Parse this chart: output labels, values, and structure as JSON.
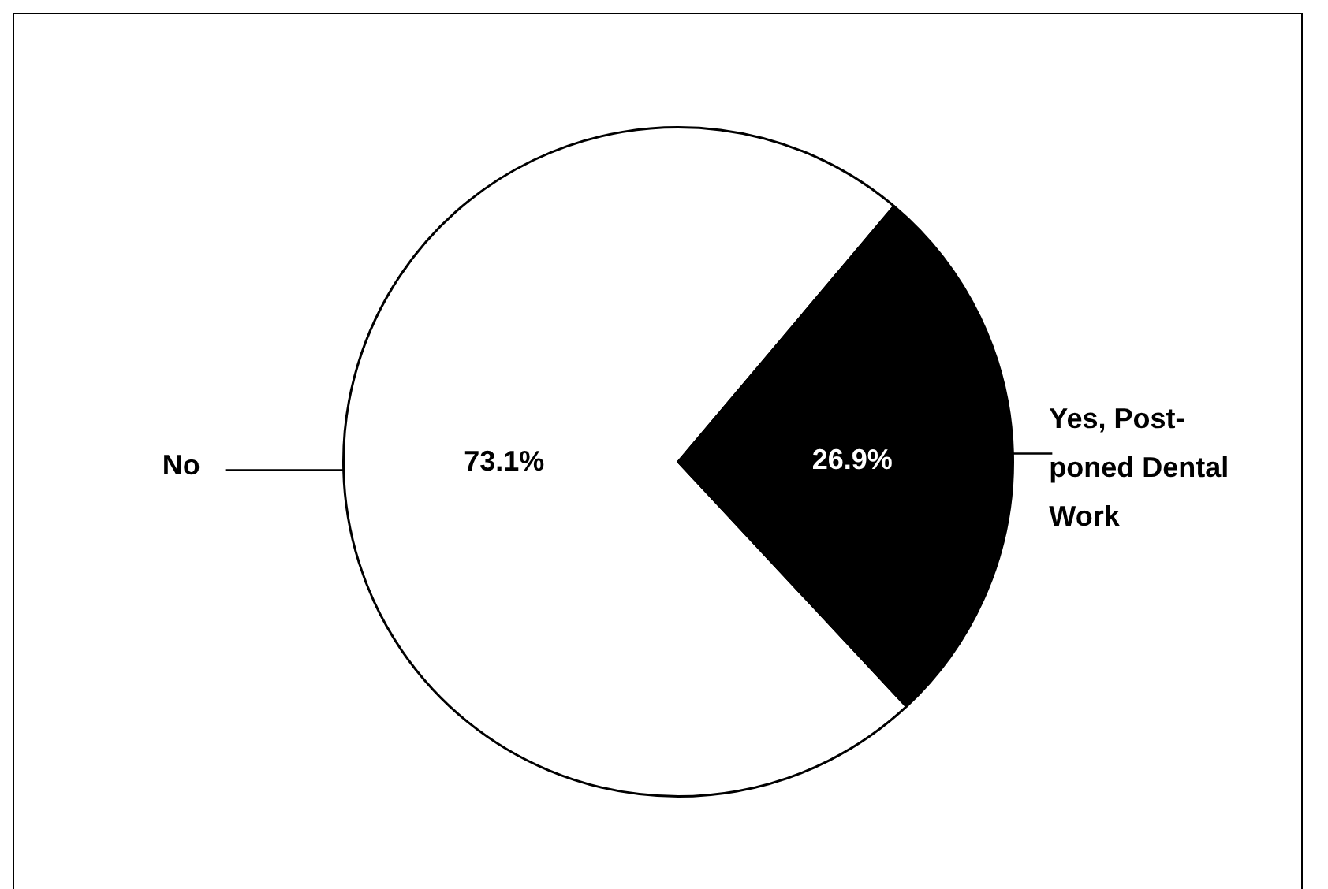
{
  "chart_data": {
    "type": "pie",
    "categories": [
      "No",
      "Yes, Post-poned Dental Work"
    ],
    "values": [
      73.1,
      26.9
    ],
    "value_labels": [
      "73.1%",
      "26.9%"
    ],
    "colors": [
      "#ffffff",
      "#000000"
    ],
    "legend": false
  }
}
